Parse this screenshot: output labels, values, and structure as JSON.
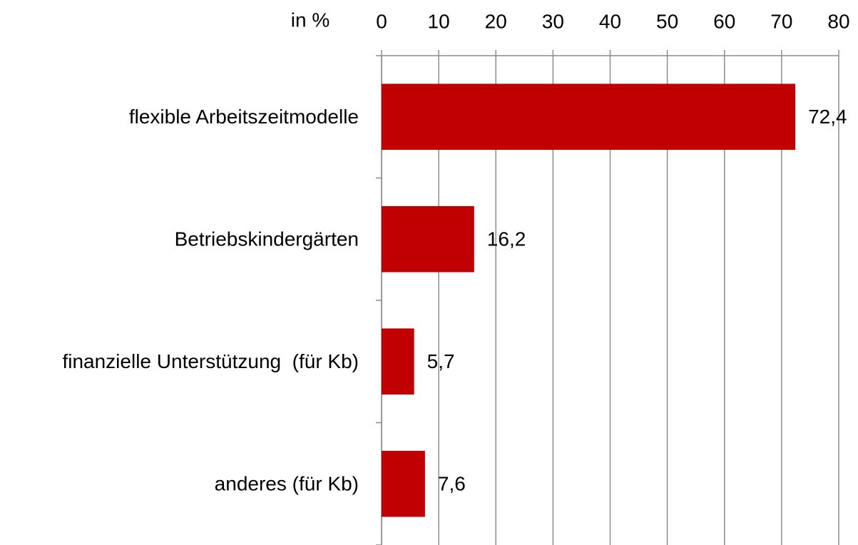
{
  "chart_data": {
    "type": "barh",
    "axis_label": "in %",
    "categories": [
      "flexible Arbeitszeitmodelle",
      "Betriebskindergärten",
      "finanzielle Unterstützung  (für Kb)",
      "anderes (für Kb)"
    ],
    "values": [
      72.4,
      16.2,
      5.7,
      7.6
    ],
    "value_labels": [
      "72,4",
      "16,2",
      "5,7",
      "7,6"
    ],
    "color": "#c00000",
    "xlim": [
      0,
      80
    ],
    "xticks": [
      0,
      10,
      20,
      30,
      40,
      50,
      60,
      70,
      80
    ],
    "grid": true
  }
}
